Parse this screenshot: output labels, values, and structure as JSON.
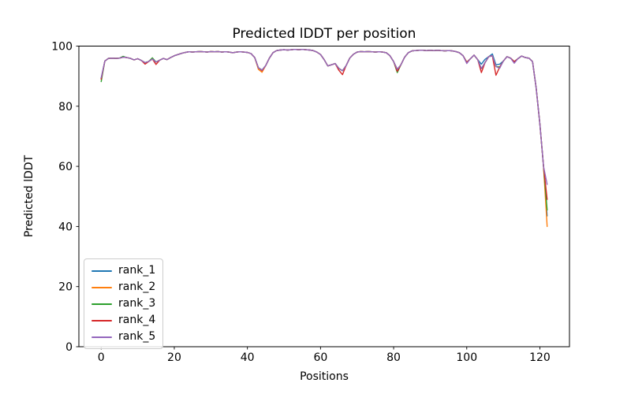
{
  "figure": {
    "background": "#ffffff"
  },
  "chart_data": {
    "type": "line",
    "title": "Predicted lDDT per position",
    "xlabel": "Positions",
    "ylabel": "Predicted lDDT",
    "xlim": [
      -6.1,
      128.1
    ],
    "ylim": [
      0,
      100
    ],
    "xticks": [
      0,
      20,
      40,
      60,
      80,
      100,
      120
    ],
    "yticks": [
      0,
      20,
      40,
      60,
      80,
      100
    ],
    "grid": false,
    "legend_position": "lower left",
    "x": [
      0,
      1,
      2,
      3,
      4,
      5,
      6,
      7,
      8,
      9,
      10,
      11,
      12,
      13,
      14,
      15,
      16,
      17,
      18,
      19,
      20,
      21,
      22,
      23,
      24,
      25,
      26,
      27,
      28,
      29,
      30,
      31,
      32,
      33,
      34,
      35,
      36,
      37,
      38,
      39,
      40,
      41,
      42,
      43,
      44,
      45,
      46,
      47,
      48,
      49,
      50,
      51,
      52,
      53,
      54,
      55,
      56,
      57,
      58,
      59,
      60,
      61,
      62,
      63,
      64,
      65,
      66,
      67,
      68,
      69,
      70,
      71,
      72,
      73,
      74,
      75,
      76,
      77,
      78,
      79,
      80,
      81,
      82,
      83,
      84,
      85,
      86,
      87,
      88,
      89,
      90,
      91,
      92,
      93,
      94,
      95,
      96,
      97,
      98,
      99,
      100,
      101,
      102,
      103,
      104,
      105,
      106,
      107,
      108,
      109,
      110,
      111,
      112,
      113,
      114,
      115,
      116,
      117,
      118,
      119,
      120,
      121,
      122
    ],
    "series": [
      {
        "name": "rank_1",
        "color": "#1f77b4",
        "values": [
          89.3,
          95.0,
          95.9,
          96.0,
          95.9,
          96.0,
          96.3,
          96.2,
          95.9,
          95.4,
          95.8,
          95.2,
          94.5,
          94.9,
          95.7,
          94.7,
          95.3,
          95.9,
          95.5,
          96.2,
          96.8,
          97.2,
          97.6,
          97.9,
          98.1,
          98.0,
          98.1,
          98.2,
          98.1,
          98.0,
          98.2,
          98.1,
          98.2,
          98.0,
          98.1,
          98.0,
          97.8,
          98.0,
          98.1,
          98.0,
          97.9,
          97.5,
          96.2,
          92.8,
          92.0,
          93.5,
          96.0,
          97.8,
          98.5,
          98.7,
          98.8,
          98.7,
          98.8,
          98.9,
          98.8,
          98.9,
          98.8,
          98.7,
          98.5,
          98.0,
          97.2,
          95.5,
          93.4,
          93.8,
          94.2,
          92.6,
          91.8,
          93.5,
          96.0,
          97.3,
          98.0,
          98.2,
          98.1,
          98.2,
          98.1,
          98.0,
          98.1,
          98.0,
          97.8,
          96.8,
          94.8,
          92.3,
          93.8,
          96.3,
          97.8,
          98.4,
          98.5,
          98.6,
          98.6,
          98.5,
          98.6,
          98.5,
          98.6,
          98.5,
          98.4,
          98.5,
          98.4,
          98.2,
          97.8,
          96.8,
          94.6,
          95.8,
          97.0,
          95.5,
          94.0,
          95.6,
          96.5,
          97.4,
          93.8,
          94.0,
          95.0,
          96.5,
          96.0,
          94.8,
          95.8,
          96.7,
          96.2,
          96.0,
          94.8,
          86.0,
          74.0,
          60.0,
          43.5
        ]
      },
      {
        "name": "rank_2",
        "color": "#ff7f0e",
        "values": [
          89.0,
          95.0,
          95.9,
          96.0,
          95.9,
          96.0,
          96.3,
          96.2,
          95.9,
          95.4,
          95.8,
          95.2,
          94.5,
          94.9,
          95.7,
          94.7,
          95.3,
          95.9,
          95.5,
          96.2,
          96.8,
          97.2,
          97.6,
          97.9,
          98.1,
          98.0,
          98.1,
          98.2,
          98.1,
          98.0,
          98.2,
          98.1,
          98.2,
          98.0,
          98.1,
          98.0,
          97.8,
          98.0,
          98.1,
          98.0,
          97.9,
          97.5,
          96.2,
          92.3,
          91.3,
          93.5,
          96.0,
          97.8,
          98.5,
          98.7,
          98.8,
          98.7,
          98.8,
          98.9,
          98.8,
          98.9,
          98.8,
          98.7,
          98.5,
          98.0,
          97.2,
          95.5,
          93.4,
          93.8,
          94.2,
          92.6,
          91.8,
          93.5,
          96.0,
          97.3,
          98.0,
          98.2,
          98.1,
          98.2,
          98.1,
          98.0,
          98.1,
          98.0,
          97.8,
          96.8,
          94.8,
          92.3,
          93.8,
          96.3,
          97.8,
          98.4,
          98.5,
          98.6,
          98.6,
          98.5,
          98.6,
          98.5,
          98.6,
          98.5,
          98.4,
          98.5,
          98.4,
          98.2,
          97.8,
          96.8,
          94.6,
          95.8,
          97.0,
          95.5,
          92.5,
          94.5,
          96.5,
          96.8,
          93.2,
          93.0,
          95.0,
          96.5,
          96.0,
          94.8,
          95.8,
          96.7,
          96.2,
          96.0,
          94.8,
          86.0,
          74.0,
          60.0,
          40.0
        ]
      },
      {
        "name": "rank_3",
        "color": "#2ca02c",
        "values": [
          88.2,
          95.0,
          95.9,
          96.0,
          95.9,
          96.0,
          96.6,
          96.2,
          95.9,
          95.4,
          95.8,
          95.2,
          94.5,
          94.9,
          96.1,
          94.7,
          95.3,
          95.9,
          95.5,
          96.2,
          96.8,
          97.2,
          97.6,
          97.9,
          98.1,
          98.0,
          98.1,
          98.2,
          98.1,
          98.0,
          98.2,
          98.1,
          98.2,
          98.0,
          98.1,
          98.0,
          97.8,
          98.0,
          98.1,
          98.0,
          97.9,
          97.5,
          96.2,
          92.8,
          92.0,
          93.5,
          96.0,
          97.8,
          98.5,
          98.7,
          98.8,
          98.7,
          98.8,
          98.9,
          98.8,
          98.9,
          98.8,
          98.7,
          98.5,
          98.0,
          97.2,
          95.5,
          93.4,
          93.8,
          94.2,
          92.6,
          91.8,
          93.5,
          96.0,
          97.3,
          98.0,
          98.2,
          98.1,
          98.2,
          98.1,
          98.0,
          98.1,
          98.0,
          97.8,
          96.8,
          94.8,
          91.2,
          93.8,
          96.3,
          97.8,
          98.4,
          98.5,
          98.6,
          98.6,
          98.5,
          98.6,
          98.5,
          98.6,
          98.5,
          98.4,
          98.5,
          98.4,
          98.2,
          97.8,
          96.8,
          94.6,
          95.8,
          97.0,
          95.5,
          92.5,
          94.5,
          96.5,
          96.8,
          93.2,
          93.0,
          95.0,
          96.5,
          96.0,
          94.8,
          95.8,
          96.7,
          96.2,
          96.0,
          94.8,
          86.0,
          74.0,
          60.0,
          45.5
        ]
      },
      {
        "name": "rank_4",
        "color": "#d62728",
        "values": [
          89.0,
          95.0,
          95.9,
          96.0,
          95.9,
          96.0,
          96.3,
          96.2,
          95.9,
          95.4,
          95.8,
          95.2,
          94.0,
          94.9,
          95.7,
          93.9,
          95.3,
          95.9,
          95.5,
          96.2,
          96.8,
          97.2,
          97.6,
          97.9,
          98.1,
          98.0,
          98.1,
          98.2,
          98.1,
          98.0,
          98.2,
          98.1,
          98.2,
          98.0,
          98.1,
          98.0,
          97.8,
          98.0,
          98.1,
          98.0,
          97.9,
          97.5,
          96.2,
          92.8,
          91.8,
          93.5,
          96.0,
          97.8,
          98.5,
          98.7,
          98.8,
          98.7,
          98.8,
          98.9,
          98.8,
          98.9,
          98.8,
          98.7,
          98.5,
          98.0,
          97.2,
          95.5,
          93.4,
          93.8,
          94.2,
          92.0,
          90.5,
          93.5,
          96.0,
          97.3,
          98.0,
          98.2,
          98.1,
          98.2,
          98.1,
          98.0,
          98.1,
          98.0,
          97.8,
          96.8,
          94.8,
          91.6,
          93.8,
          96.3,
          97.8,
          98.4,
          98.5,
          98.6,
          98.6,
          98.5,
          98.6,
          98.5,
          98.6,
          98.5,
          98.4,
          98.5,
          98.4,
          98.2,
          97.8,
          96.8,
          94.6,
          95.8,
          97.0,
          95.5,
          91.2,
          94.5,
          96.5,
          96.8,
          90.3,
          93.0,
          95.0,
          96.5,
          96.0,
          94.8,
          95.8,
          96.7,
          96.2,
          96.0,
          94.8,
          86.0,
          74.0,
          60.0,
          49.0
        ]
      },
      {
        "name": "rank_5",
        "color": "#9467bd",
        "values": [
          89.5,
          95.0,
          95.9,
          96.0,
          95.9,
          96.0,
          96.3,
          96.2,
          95.9,
          95.4,
          95.8,
          95.2,
          94.5,
          94.9,
          95.7,
          94.7,
          95.3,
          95.9,
          95.5,
          96.2,
          96.8,
          97.2,
          97.6,
          97.9,
          98.1,
          98.0,
          98.1,
          98.2,
          98.1,
          98.0,
          98.2,
          98.1,
          98.2,
          98.0,
          98.1,
          98.0,
          97.8,
          98.0,
          98.1,
          98.0,
          97.9,
          97.5,
          96.2,
          92.8,
          92.0,
          93.5,
          96.0,
          97.8,
          98.5,
          98.7,
          98.8,
          98.7,
          98.8,
          98.9,
          98.8,
          98.9,
          98.8,
          98.7,
          98.5,
          98.0,
          97.2,
          95.5,
          93.4,
          93.8,
          94.2,
          92.6,
          91.8,
          93.5,
          96.0,
          97.3,
          98.0,
          98.2,
          98.1,
          98.2,
          98.1,
          98.0,
          98.1,
          98.0,
          97.8,
          96.8,
          94.8,
          92.3,
          93.8,
          96.3,
          97.8,
          98.4,
          98.5,
          98.6,
          98.6,
          98.5,
          98.6,
          98.5,
          98.6,
          98.5,
          98.4,
          98.5,
          98.4,
          98.2,
          97.8,
          96.8,
          94.2,
          95.8,
          97.0,
          95.5,
          92.5,
          94.5,
          96.5,
          96.8,
          93.2,
          92.6,
          95.0,
          96.5,
          96.0,
          94.3,
          95.8,
          96.7,
          96.2,
          96.0,
          94.8,
          86.0,
          74.0,
          60.0,
          54.0
        ]
      }
    ]
  }
}
